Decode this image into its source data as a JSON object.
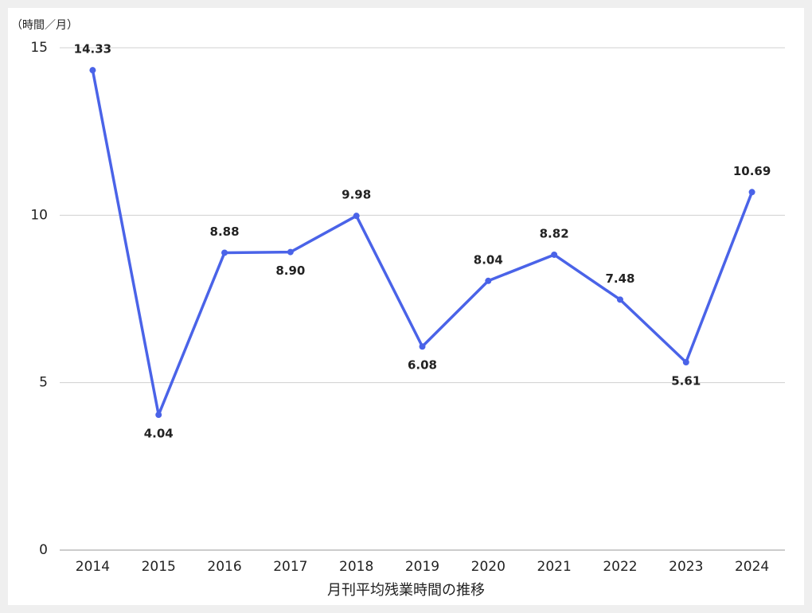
{
  "chart_data": {
    "type": "line",
    "y_label": "（時間／月）",
    "x_label": "月刊平均残業時間の推移",
    "categories": [
      "2014",
      "2015",
      "2016",
      "2017",
      "2018",
      "2019",
      "2020",
      "2021",
      "2022",
      "2023",
      "2024"
    ],
    "values": [
      14.33,
      4.04,
      8.88,
      8.9,
      9.98,
      6.08,
      8.04,
      8.82,
      7.48,
      5.61,
      10.69
    ],
    "value_labels": [
      "14.33",
      "4.04",
      "8.88",
      "8.90",
      "9.98",
      "6.08",
      "8.04",
      "8.82",
      "7.48",
      "5.61",
      "10.69"
    ],
    "color": "#4a63e8",
    "ylim": [
      0,
      15
    ],
    "yticks": [
      0,
      5,
      10,
      15
    ],
    "grid": true
  }
}
